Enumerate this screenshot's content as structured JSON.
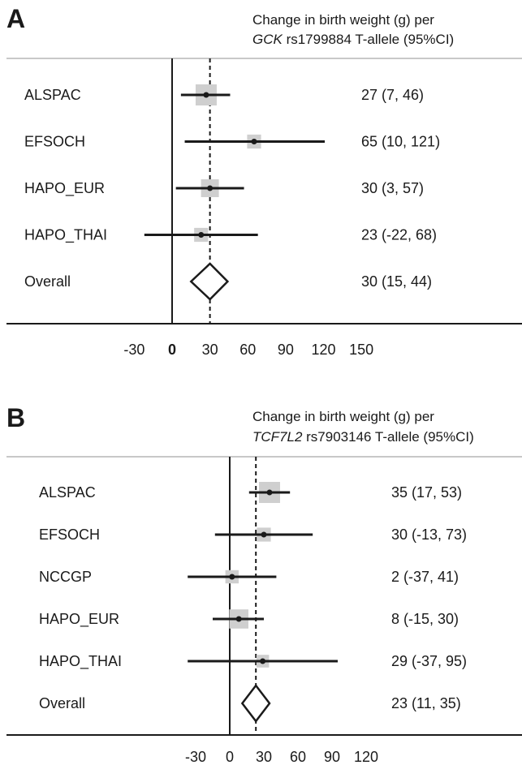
{
  "chart_data": [
    {
      "type": "forest",
      "panel": "A",
      "header": {
        "line1": "Change in birth weight (g) per",
        "gene": "GCK",
        "line2_rest": " rs1799884 T-allele (95%CI)"
      },
      "xticks": [
        -30,
        0,
        30,
        60,
        90,
        120,
        150
      ],
      "xlim": [
        -30,
        150
      ],
      "reference_line": 0,
      "overall_line": 30,
      "rows": [
        {
          "label": "ALSPAC",
          "estimate": 27,
          "lower": 7,
          "upper": 46,
          "weight": 1.0,
          "text": "27 (7, 46)"
        },
        {
          "label": "EFSOCH",
          "estimate": 65,
          "lower": 10,
          "upper": 121,
          "weight": 0.45,
          "text": "65 (10, 121)"
        },
        {
          "label": "HAPO_EUR",
          "estimate": 30,
          "lower": 3,
          "upper": 57,
          "weight": 0.75,
          "text": "30 (3, 57)"
        },
        {
          "label": "HAPO_THAI",
          "estimate": 23,
          "lower": -22,
          "upper": 68,
          "weight": 0.45,
          "text": "23 (-22, 68)"
        }
      ],
      "overall": {
        "label": "Overall",
        "estimate": 30,
        "lower": 15,
        "upper": 44,
        "text": "30 (15, 44)"
      }
    },
    {
      "type": "forest",
      "panel": "B",
      "header": {
        "line1": "Change in birth weight (g) per",
        "gene": "TCF7L2",
        "line2_rest": " rs7903146 T-allele (95%CI)"
      },
      "xticks": [
        -30,
        0,
        30,
        60,
        90,
        120
      ],
      "xlim": [
        -30,
        120
      ],
      "reference_line": 0,
      "overall_line": 23,
      "rows": [
        {
          "label": "ALSPAC",
          "estimate": 35,
          "lower": 17,
          "upper": 53,
          "weight": 1.0,
          "text": "35 (17, 53)"
        },
        {
          "label": "EFSOCH",
          "estimate": 30,
          "lower": -13,
          "upper": 73,
          "weight": 0.45,
          "text": "30 (-13, 73)"
        },
        {
          "label": "NCCGP",
          "estimate": 2,
          "lower": -37,
          "upper": 41,
          "weight": 0.4,
          "text": "2 (-37, 41)"
        },
        {
          "label": "HAPO_EUR",
          "estimate": 8,
          "lower": -15,
          "upper": 30,
          "weight": 0.85,
          "text": "8 (-15, 30)"
        },
        {
          "label": "HAPO_THAI",
          "estimate": 29,
          "lower": -37,
          "upper": 95,
          "weight": 0.35,
          "text": "29 (-37, 95)"
        }
      ],
      "overall": {
        "label": "Overall",
        "estimate": 23,
        "lower": 11,
        "upper": 35,
        "text": "23 (11, 35)"
      }
    }
  ]
}
